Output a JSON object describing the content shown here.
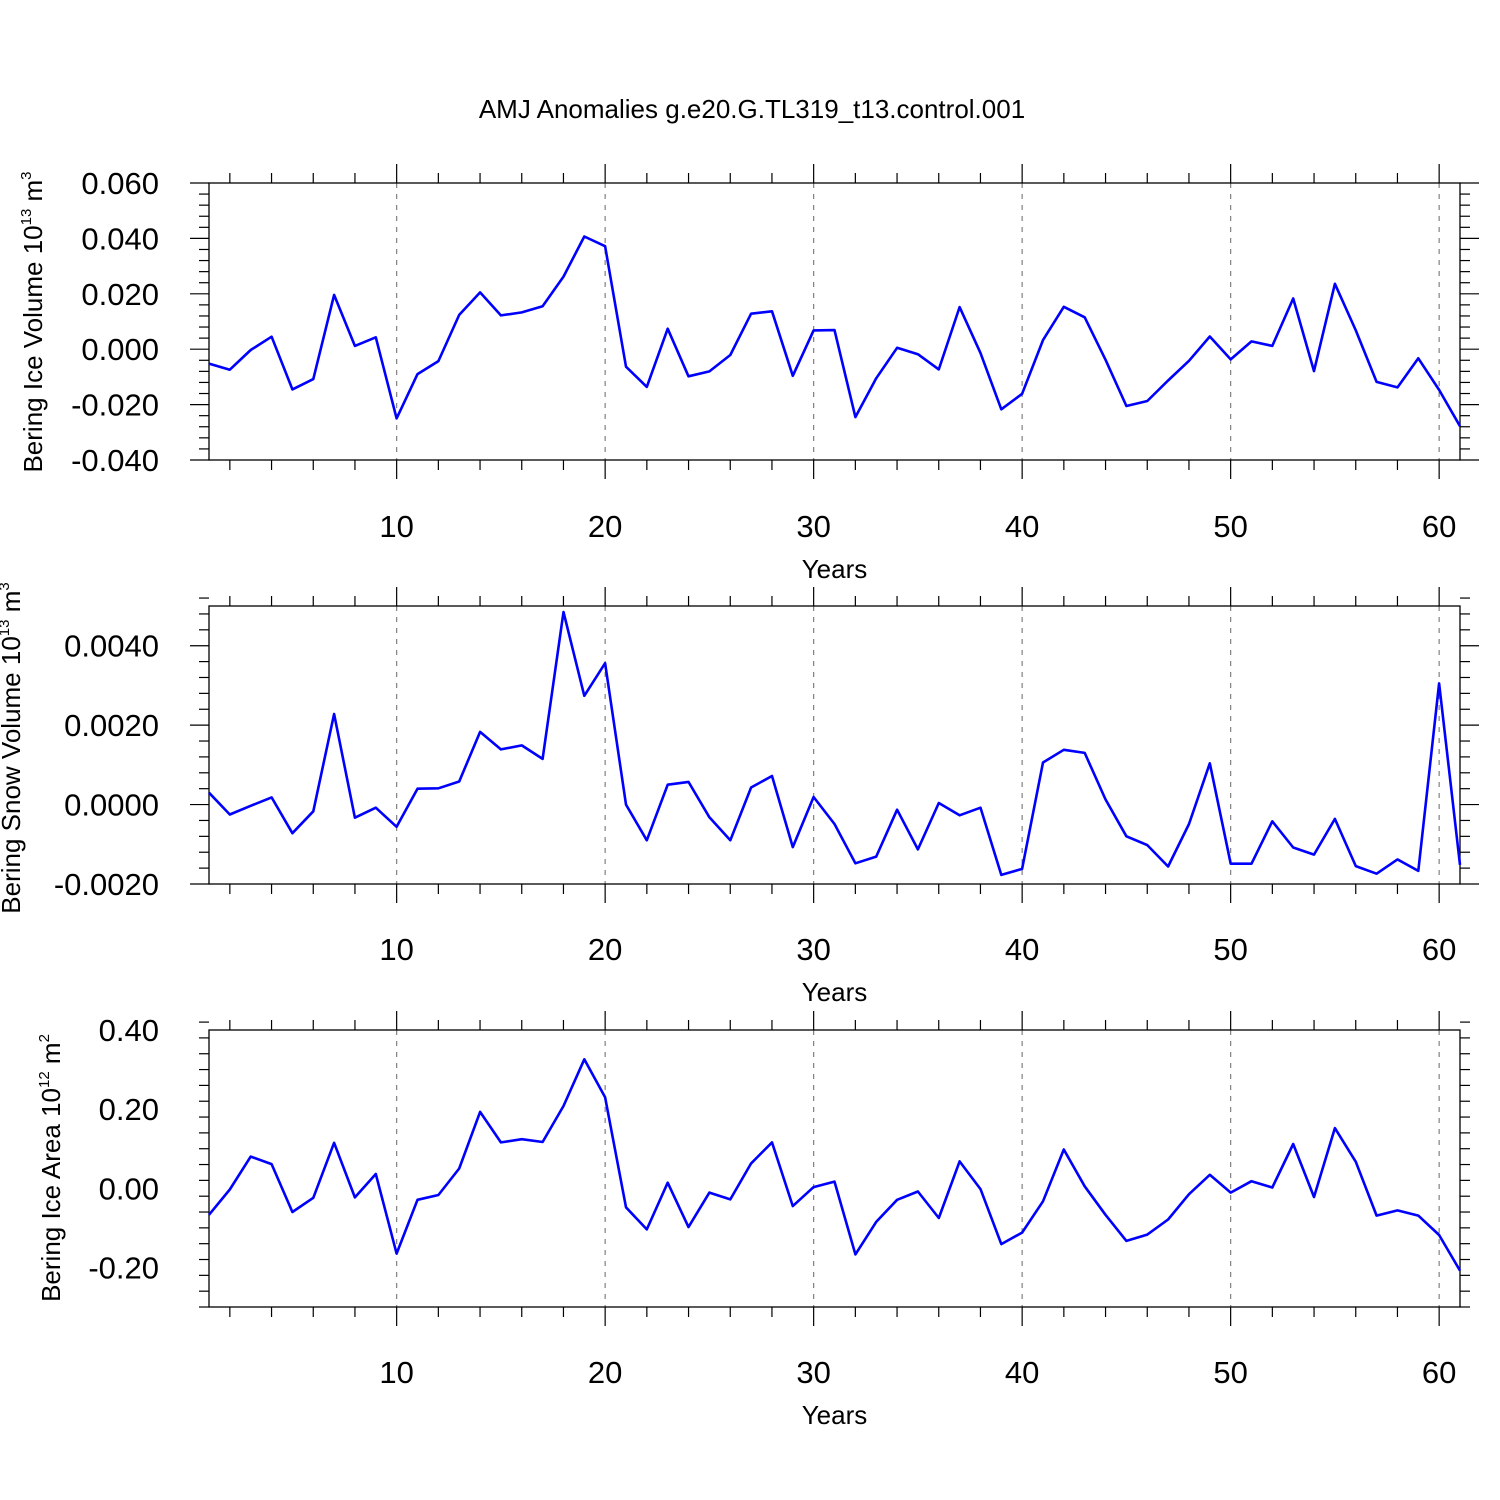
{
  "title": "AMJ Anomalies g.e20.G.TL319_t13.control.001",
  "colors": {
    "line": "#0000ff",
    "axis": "#000000",
    "grid": "#808080"
  },
  "chart_data": [
    {
      "type": "line",
      "xlabel": "Years",
      "ylabel_parts": {
        "main": "Bering Ice Volume 10",
        "exp": "13",
        "unit": " m",
        "unit_exp": "3"
      },
      "xlim": [
        1,
        61
      ],
      "ylim": [
        -0.04,
        0.06
      ],
      "xticks": [
        10,
        20,
        30,
        40,
        50,
        60
      ],
      "xtick_labels": [
        "10",
        "20",
        "30",
        "40",
        "50",
        "60"
      ],
      "yticks": [
        -0.04,
        -0.02,
        0.0,
        0.02,
        0.04,
        0.06
      ],
      "ytick_labels": [
        "-0.040",
        "-0.020",
        "0.000",
        "0.020",
        "0.040",
        "0.060"
      ],
      "grid": "vertical dashed at major x ticks",
      "x": [
        1,
        2,
        3,
        4,
        5,
        6,
        7,
        8,
        9,
        10,
        11,
        12,
        13,
        14,
        15,
        16,
        17,
        18,
        19,
        20,
        21,
        22,
        23,
        24,
        25,
        26,
        27,
        28,
        29,
        30,
        31,
        32,
        33,
        34,
        35,
        36,
        37,
        38,
        39,
        40,
        41,
        42,
        43,
        44,
        45,
        46,
        47,
        48,
        49,
        50,
        51,
        52,
        53,
        54,
        55,
        56,
        57,
        58,
        59,
        60,
        61
      ],
      "values": [
        -0.0052,
        -0.0074,
        -0.0003,
        0.0045,
        -0.0145,
        -0.0108,
        0.0196,
        0.0012,
        0.0043,
        -0.025,
        -0.009,
        -0.0043,
        0.0124,
        0.0205,
        0.0122,
        0.0133,
        0.0155,
        0.0262,
        0.0407,
        0.0372,
        -0.0063,
        -0.0136,
        0.0074,
        -0.0098,
        -0.008,
        -0.0021,
        0.0128,
        0.0137,
        -0.0096,
        0.0068,
        0.0069,
        -0.0245,
        -0.0105,
        0.0005,
        -0.0018,
        -0.0073,
        0.0152,
        -0.0014,
        -0.0217,
        -0.0161,
        0.0033,
        0.0153,
        0.0115,
        -0.0038,
        -0.0205,
        -0.0187,
        -0.0113,
        -0.0042,
        0.0046,
        -0.0037,
        0.0028,
        0.0012,
        0.0183,
        -0.0079,
        0.0236,
        0.0068,
        -0.0118,
        -0.0138,
        -0.0033,
        -0.0147,
        -0.0278
      ]
    },
    {
      "type": "line",
      "xlabel": "Years",
      "ylabel_parts": {
        "main": "Bering Snow Volume 10",
        "exp": "13",
        "unit": " m",
        "unit_exp": "3"
      },
      "xlim": [
        1,
        61
      ],
      "ylim": [
        -0.002,
        0.005
      ],
      "xticks": [
        10,
        20,
        30,
        40,
        50,
        60
      ],
      "xtick_labels": [
        "10",
        "20",
        "30",
        "40",
        "50",
        "60"
      ],
      "yticks": [
        -0.002,
        0.0,
        0.002,
        0.004
      ],
      "ytick_labels": [
        "-0.0020",
        "0.0000",
        "0.0020",
        "0.0040"
      ],
      "grid": "vertical dashed at major x ticks",
      "x": [
        1,
        2,
        3,
        4,
        5,
        6,
        7,
        8,
        9,
        10,
        11,
        12,
        13,
        14,
        15,
        16,
        17,
        18,
        19,
        20,
        21,
        22,
        23,
        24,
        25,
        26,
        27,
        28,
        29,
        30,
        31,
        32,
        33,
        34,
        35,
        36,
        37,
        38,
        39,
        40,
        41,
        42,
        43,
        44,
        45,
        46,
        47,
        48,
        49,
        50,
        51,
        52,
        53,
        54,
        55,
        56,
        57,
        58,
        59,
        60,
        61
      ],
      "values": [
        0.0003,
        -0.00025,
        -3e-05,
        0.00018,
        -0.00072,
        -0.00017,
        0.00228,
        -0.00033,
        -8e-05,
        -0.00056,
        0.0004,
        0.00041,
        0.00058,
        0.00183,
        0.00139,
        0.00149,
        0.00115,
        0.00485,
        0.00274,
        0.00356,
        0.0,
        -0.0009,
        0.0005,
        0.00057,
        -0.00032,
        -0.0009,
        0.00043,
        0.00072,
        -0.00107,
        0.00019,
        -0.00049,
        -0.00148,
        -0.00131,
        -0.00013,
        -0.00113,
        4e-05,
        -0.00027,
        -8e-05,
        -0.00177,
        -0.00162,
        0.00106,
        0.00138,
        0.0013,
        0.00013,
        -0.0008,
        -0.00102,
        -0.00156,
        -0.00049,
        0.00104,
        -0.00149,
        -0.00149,
        -0.00042,
        -0.00108,
        -0.00126,
        -0.00036,
        -0.00155,
        -0.00174,
        -0.00138,
        -0.00167,
        0.00305,
        -0.00152
      ]
    },
    {
      "type": "line",
      "xlabel": "Years",
      "ylabel_parts": {
        "main": "Bering Ice Area 10",
        "exp": "12",
        "unit": " m",
        "unit_exp": "2"
      },
      "xlim": [
        1,
        61
      ],
      "ylim": [
        -0.3,
        0.4
      ],
      "xticks": [
        10,
        20,
        30,
        40,
        50,
        60
      ],
      "xtick_labels": [
        "10",
        "20",
        "30",
        "40",
        "50",
        "60"
      ],
      "yticks": [
        -0.2,
        0.0,
        0.2,
        0.4
      ],
      "ytick_labels": [
        "-0.20",
        "0.00",
        "0.20",
        "0.40"
      ],
      "grid": "vertical dashed at major x ticks",
      "x": [
        1,
        2,
        3,
        4,
        5,
        6,
        7,
        8,
        9,
        10,
        11,
        12,
        13,
        14,
        15,
        16,
        17,
        18,
        19,
        20,
        21,
        22,
        23,
        24,
        25,
        26,
        27,
        28,
        29,
        30,
        31,
        32,
        33,
        34,
        35,
        36,
        37,
        38,
        39,
        40,
        41,
        42,
        43,
        44,
        45,
        46,
        47,
        48,
        49,
        50,
        51,
        52,
        53,
        54,
        55,
        56,
        57,
        58,
        59,
        60,
        61
      ],
      "values": [
        -0.067,
        -0.003,
        0.08,
        0.061,
        -0.06,
        -0.024,
        0.115,
        -0.023,
        0.036,
        -0.165,
        -0.029,
        -0.017,
        0.05,
        0.193,
        0.116,
        0.124,
        0.117,
        0.208,
        0.326,
        0.23,
        -0.048,
        -0.104,
        0.014,
        -0.098,
        -0.011,
        -0.028,
        0.063,
        0.116,
        -0.045,
        0.003,
        0.017,
        -0.167,
        -0.085,
        -0.029,
        -0.008,
        -0.075,
        0.068,
        -0.002,
        -0.141,
        -0.112,
        -0.033,
        0.098,
        0.005,
        -0.067,
        -0.133,
        -0.117,
        -0.079,
        -0.015,
        0.034,
        -0.011,
        0.018,
        0.002,
        0.112,
        -0.022,
        0.152,
        0.067,
        -0.069,
        -0.056,
        -0.069,
        -0.118,
        -0.208
      ]
    }
  ]
}
